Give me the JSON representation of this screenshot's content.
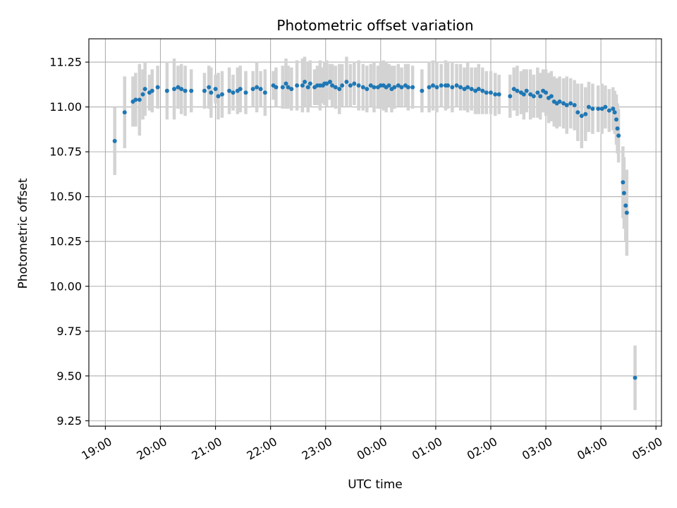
{
  "chart_data": {
    "type": "scatter",
    "title": "Photometric offset variation",
    "xlabel": "UTC time",
    "ylabel": "Photometric offset",
    "x_unit": "hours",
    "xlim": [
      18.7,
      29.1
    ],
    "ylim": [
      9.22,
      11.38
    ],
    "grid": true,
    "x_ticks": [
      {
        "value": 19,
        "label": "19:00"
      },
      {
        "value": 20,
        "label": "20:00"
      },
      {
        "value": 21,
        "label": "21:00"
      },
      {
        "value": 22,
        "label": "22:00"
      },
      {
        "value": 23,
        "label": "23:00"
      },
      {
        "value": 24,
        "label": "00:00"
      },
      {
        "value": 25,
        "label": "01:00"
      },
      {
        "value": 26,
        "label": "02:00"
      },
      {
        "value": 27,
        "label": "03:00"
      },
      {
        "value": 28,
        "label": "04:00"
      },
      {
        "value": 29,
        "label": "05:00"
      }
    ],
    "y_ticks": [
      {
        "value": 9.25,
        "label": "9.25"
      },
      {
        "value": 9.5,
        "label": "9.50"
      },
      {
        "value": 9.75,
        "label": "9.75"
      },
      {
        "value": 10.0,
        "label": "10.00"
      },
      {
        "value": 10.25,
        "label": "10.25"
      },
      {
        "value": 10.5,
        "label": "10.50"
      },
      {
        "value": 10.75,
        "label": "10.75"
      },
      {
        "value": 11.0,
        "label": "11.00"
      },
      {
        "value": 11.25,
        "label": "11.25"
      }
    ],
    "marker_color": "#1f77b4",
    "errorbar_color": "#d3d3d3",
    "series": [
      {
        "x": [
          19.17,
          19.35,
          19.5,
          19.55,
          19.62,
          19.68,
          19.72,
          19.8,
          19.85,
          19.95,
          20.12,
          20.25,
          20.32,
          20.38,
          20.45,
          20.56,
          20.8,
          20.88,
          20.92,
          21.0,
          21.05,
          21.12,
          21.25,
          21.32,
          21.4,
          21.45,
          21.55,
          21.68,
          21.75,
          21.82,
          21.9,
          22.05,
          22.1,
          22.22,
          22.28,
          22.32,
          22.38,
          22.48,
          22.58,
          22.62,
          22.68,
          22.72,
          22.8,
          22.85,
          22.9,
          22.95,
          22.98,
          23.02,
          23.08,
          23.12,
          23.18,
          23.25,
          23.3,
          23.38,
          23.45,
          23.52,
          23.6,
          23.68,
          23.75,
          23.82,
          23.88,
          23.95,
          24.0,
          24.05,
          24.1,
          24.15,
          24.2,
          24.25,
          24.32,
          24.38,
          24.45,
          24.5,
          24.58,
          24.75,
          24.88,
          24.95,
          25.02,
          25.1,
          25.18,
          25.22,
          25.3,
          25.38,
          25.45,
          25.52,
          25.58,
          25.65,
          25.72,
          25.78,
          25.85,
          25.92,
          26.0,
          26.08,
          26.15,
          26.35,
          26.42,
          26.48,
          26.55,
          26.6,
          26.65,
          26.72,
          26.78,
          26.85,
          26.9,
          26.95,
          27.0,
          27.05,
          27.1,
          27.15,
          27.2,
          27.25,
          27.32,
          27.38,
          27.45,
          27.52,
          27.58,
          27.65,
          27.72,
          27.78,
          27.85,
          27.95,
          28.02,
          28.08,
          28.15,
          28.22,
          28.25,
          28.28,
          28.3,
          28.32,
          28.4,
          28.42,
          28.45,
          28.47,
          28.62
        ],
        "y": [
          10.81,
          10.97,
          11.03,
          11.04,
          11.04,
          11.07,
          11.1,
          11.08,
          11.09,
          11.11,
          11.09,
          11.1,
          11.11,
          11.1,
          11.09,
          11.09,
          11.09,
          11.11,
          11.08,
          11.1,
          11.06,
          11.07,
          11.09,
          11.08,
          11.09,
          11.1,
          11.08,
          11.1,
          11.11,
          11.1,
          11.08,
          11.12,
          11.11,
          11.11,
          11.13,
          11.11,
          11.1,
          11.12,
          11.12,
          11.14,
          11.11,
          11.13,
          11.11,
          11.12,
          11.12,
          11.12,
          11.13,
          11.13,
          11.14,
          11.12,
          11.11,
          11.1,
          11.12,
          11.14,
          11.12,
          11.13,
          11.12,
          11.11,
          11.1,
          11.12,
          11.11,
          11.11,
          11.12,
          11.12,
          11.11,
          11.12,
          11.1,
          11.11,
          11.12,
          11.11,
          11.12,
          11.11,
          11.11,
          11.09,
          11.11,
          11.12,
          11.11,
          11.12,
          11.12,
          11.12,
          11.11,
          11.12,
          11.11,
          11.1,
          11.11,
          11.1,
          11.09,
          11.1,
          11.09,
          11.08,
          11.08,
          11.07,
          11.07,
          11.06,
          11.1,
          11.09,
          11.08,
          11.07,
          11.09,
          11.07,
          11.06,
          11.08,
          11.06,
          11.09,
          11.08,
          11.05,
          11.06,
          11.03,
          11.02,
          11.03,
          11.02,
          11.01,
          11.02,
          11.01,
          10.97,
          10.95,
          10.96,
          11.0,
          10.99,
          10.99,
          10.99,
          11.0,
          10.98,
          10.99,
          10.97,
          10.93,
          10.88,
          10.84,
          10.58,
          10.52,
          10.45,
          10.41,
          9.49
        ],
        "err": [
          0.19,
          0.2,
          0.14,
          0.15,
          0.2,
          0.14,
          0.15,
          0.1,
          0.12,
          0.12,
          0.16,
          0.17,
          0.12,
          0.14,
          0.14,
          0.12,
          0.1,
          0.12,
          0.14,
          0.08,
          0.13,
          0.13,
          0.13,
          0.1,
          0.13,
          0.13,
          0.12,
          0.1,
          0.14,
          0.1,
          0.13,
          0.08,
          0.11,
          0.12,
          0.14,
          0.12,
          0.12,
          0.14,
          0.15,
          0.14,
          0.14,
          0.13,
          0.1,
          0.11,
          0.14,
          0.1,
          0.12,
          0.13,
          0.1,
          0.12,
          0.12,
          0.14,
          0.12,
          0.14,
          0.12,
          0.12,
          0.14,
          0.13,
          0.13,
          0.12,
          0.14,
          0.12,
          0.13,
          0.14,
          0.14,
          0.12,
          0.13,
          0.12,
          0.12,
          0.11,
          0.12,
          0.13,
          0.12,
          0.12,
          0.14,
          0.14,
          0.14,
          0.12,
          0.14,
          0.13,
          0.14,
          0.12,
          0.13,
          0.12,
          0.14,
          0.12,
          0.13,
          0.14,
          0.13,
          0.12,
          0.12,
          0.12,
          0.11,
          0.12,
          0.12,
          0.14,
          0.12,
          0.14,
          0.12,
          0.14,
          0.12,
          0.14,
          0.13,
          0.12,
          0.13,
          0.14,
          0.14,
          0.14,
          0.14,
          0.14,
          0.14,
          0.16,
          0.14,
          0.14,
          0.16,
          0.18,
          0.15,
          0.14,
          0.14,
          0.13,
          0.14,
          0.12,
          0.12,
          0.12,
          0.12,
          0.14,
          0.14,
          0.15,
          0.2,
          0.2,
          0.2,
          0.24,
          0.18
        ]
      }
    ]
  }
}
